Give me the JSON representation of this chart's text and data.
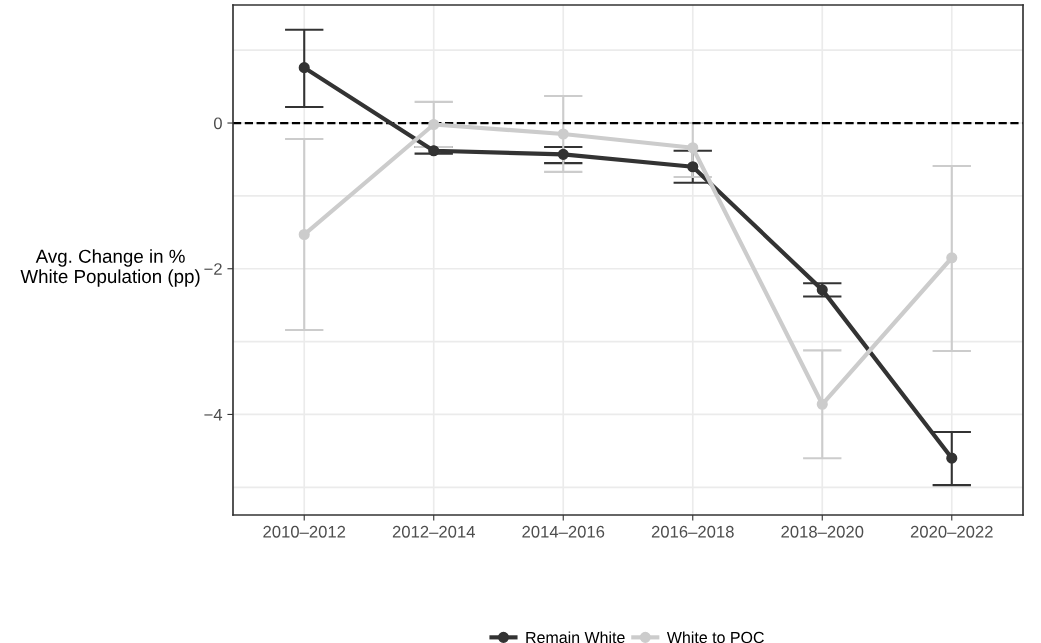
{
  "chart_data": {
    "type": "line",
    "ylabel": "Avg. Change in %\nWhite Population (pp)",
    "categories": [
      "2010–2012",
      "2012–2014",
      "2014–2016",
      "2016–2018",
      "2018–2020",
      "2020–2022"
    ],
    "series": [
      {
        "name": "Remain White",
        "color": "#333333",
        "values": [
          0.76,
          -0.38,
          -0.43,
          -0.6,
          -2.29,
          -4.6
        ],
        "errors": [
          [
            0.22,
            1.28
          ],
          [
            -0.42,
            -0.33
          ],
          [
            -0.55,
            -0.33
          ],
          [
            -0.82,
            -0.38
          ],
          [
            -2.38,
            -2.2
          ],
          [
            -4.97,
            -4.24
          ]
        ]
      },
      {
        "name": "White to POC",
        "color": "#cccccc",
        "values": [
          -1.53,
          -0.02,
          -0.15,
          -0.34,
          -3.86,
          -1.85
        ],
        "errors": [
          [
            -2.84,
            -0.22
          ],
          [
            -0.33,
            0.29
          ],
          [
            -0.67,
            0.37
          ],
          [
            -0.74,
            0.0
          ],
          [
            -4.6,
            -3.12
          ],
          [
            -3.13,
            -0.59
          ]
        ]
      }
    ],
    "ylim": [
      -5.38,
      1.62
    ],
    "yticks": [
      {
        "value": -5,
        "label": null
      },
      -4,
      {
        "value": -3,
        "label": null
      },
      -2,
      {
        "value": -1,
        "label": null
      },
      0,
      {
        "value": 1,
        "label": null
      }
    ],
    "ref_lines": [
      {
        "axis": "y",
        "value": 0,
        "color": "#000000",
        "line_style": "dashed"
      }
    ],
    "grid": true,
    "legend": "bottom",
    "marker": "circle",
    "line_style": "solid"
  }
}
